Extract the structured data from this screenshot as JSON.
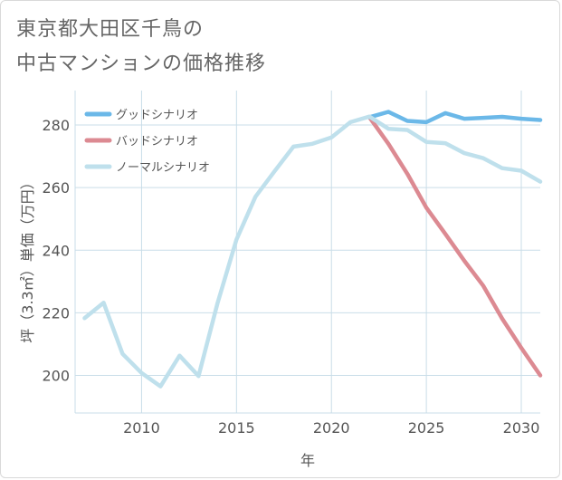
{
  "title": {
    "line1": "東京都大田区千鳥の",
    "line2": "中古マンションの価格推移"
  },
  "chart_data": {
    "type": "line",
    "xlabel": "年",
    "ylabel": "坪（3.3㎡）単価（万円）",
    "xlim": [
      2006.5,
      2031
    ],
    "ylim": [
      188,
      291
    ],
    "x_ticks": [
      2010,
      2015,
      2020,
      2025,
      2030
    ],
    "y_ticks": [
      200,
      220,
      240,
      260,
      280
    ],
    "grid": true,
    "legend_position": "top-left",
    "series": [
      {
        "name": "グッドシナリオ",
        "color": "#6bb8e8",
        "x": [
          2022,
          2023,
          2024,
          2025,
          2026,
          2027,
          2028,
          2029,
          2030,
          2031
        ],
        "y": [
          282.5,
          284.2,
          281.3,
          280.9,
          283.8,
          282.0,
          282.3,
          282.6,
          282.0,
          281.6
        ]
      },
      {
        "name": "バッドシナリオ",
        "color": "#dc8a92",
        "x": [
          2022,
          2023,
          2024,
          2025,
          2026,
          2027,
          2028,
          2029,
          2030,
          2031
        ],
        "y": [
          282.5,
          274.0,
          264.4,
          253.6,
          245.2,
          236.6,
          228.6,
          218.1,
          208.8,
          200.0
        ]
      },
      {
        "name": "ノーマルシナリオ",
        "color": "#bfe0ec",
        "x": [
          2007,
          2008,
          2009,
          2010,
          2011,
          2012,
          2013,
          2014,
          2015,
          2016,
          2017,
          2018,
          2019,
          2020,
          2021,
          2022,
          2023,
          2024,
          2025,
          2026,
          2027,
          2028,
          2029,
          2030,
          2031
        ],
        "y": [
          218.3,
          223.2,
          206.9,
          200.8,
          196.5,
          206.3,
          199.8,
          223.0,
          243.4,
          257.1,
          265.2,
          273.1,
          274.0,
          276.0,
          280.9,
          282.7,
          278.8,
          278.4,
          274.6,
          274.2,
          271.0,
          269.4,
          266.2,
          265.4,
          261.9
        ]
      }
    ]
  }
}
